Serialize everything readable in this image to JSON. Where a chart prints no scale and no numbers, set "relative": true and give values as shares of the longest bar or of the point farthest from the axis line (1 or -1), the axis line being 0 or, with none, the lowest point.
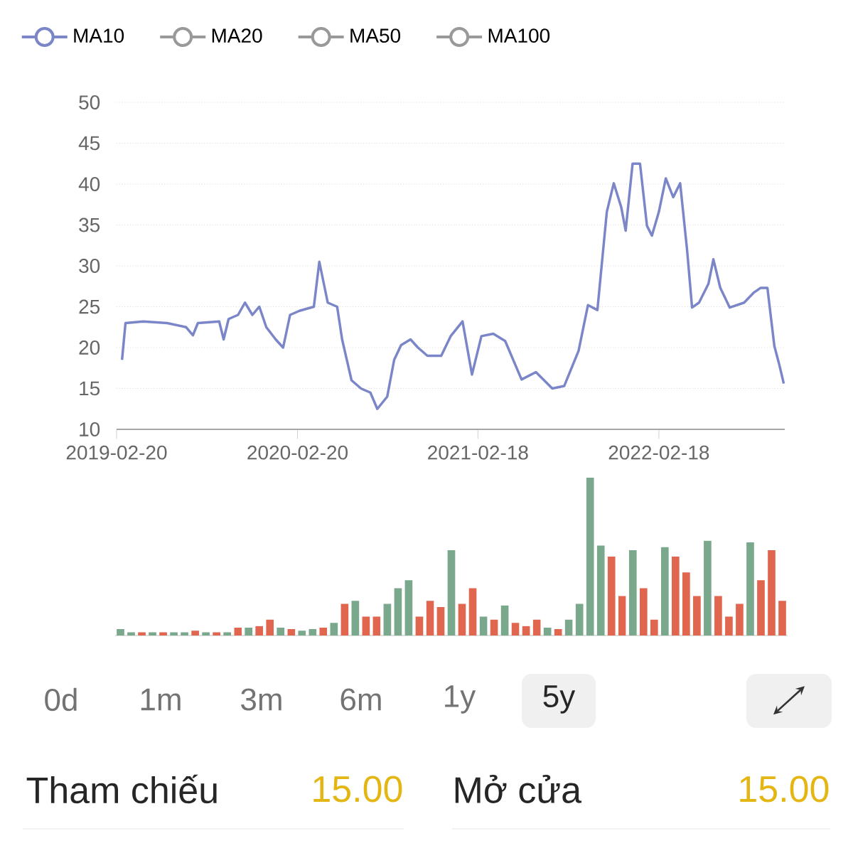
{
  "chart_data": [
    {
      "type": "line",
      "xlim": [
        "2019-02-20",
        "2022-10-30"
      ],
      "xticks": [
        "2019-02-20",
        "2020-02-20",
        "2021-02-18",
        "2022-02-18"
      ],
      "ylim": [
        10,
        50
      ],
      "yticks": [
        10,
        15,
        20,
        25,
        30,
        35,
        40,
        45,
        50
      ],
      "grid": "y",
      "legend": "top left",
      "series": [
        {
          "name": "MA10",
          "color": "#7b86c8",
          "x": [
            "2019-03-03",
            "2019-03-10",
            "2019-04-15",
            "2019-06-02",
            "2019-07-10",
            "2019-07-24",
            "2019-08-03",
            "2019-09-15",
            "2019-09-24",
            "2019-10-04",
            "2019-10-23",
            "2019-11-06",
            "2019-11-21",
            "2019-12-05",
            "2019-12-19",
            "2020-01-07",
            "2020-01-22",
            "2020-02-05",
            "2020-02-24",
            "2020-03-24",
            "2020-04-04",
            "2020-04-21",
            "2020-05-10",
            "2020-05-20",
            "2020-06-08",
            "2020-06-27",
            "2020-07-16",
            "2020-07-30",
            "2020-08-19",
            "2020-09-02",
            "2020-09-16",
            "2020-10-05",
            "2020-10-20",
            "2020-11-08",
            "2020-12-06",
            "2020-12-25",
            "2021-01-18",
            "2021-02-06",
            "2021-02-25",
            "2021-03-21",
            "2021-04-14",
            "2021-05-17",
            "2021-06-15",
            "2021-07-18",
            "2021-08-11",
            "2021-09-09",
            "2021-09-28",
            "2021-10-17",
            "2021-11-05",
            "2021-11-19",
            "2021-12-04",
            "2021-12-13",
            "2021-12-27",
            "2022-01-11",
            "2022-01-25",
            "2022-02-04",
            "2022-02-18",
            "2022-03-04",
            "2022-03-19",
            "2022-04-02",
            "2022-04-16",
            "2022-04-26",
            "2022-05-10",
            "2022-05-29",
            "2022-06-08",
            "2022-06-22",
            "2022-07-11",
            "2022-08-09",
            "2022-08-28",
            "2022-09-11",
            "2022-09-25",
            "2022-10-09",
            "2022-10-19",
            "2022-10-28"
          ],
          "values": [
            18.5,
            23,
            23.2,
            23,
            22.5,
            21.5,
            23,
            23.2,
            21,
            23.5,
            24,
            25.5,
            24,
            25,
            22.5,
            21,
            20,
            24,
            24.5,
            25,
            30.5,
            25.5,
            25,
            21,
            16,
            15,
            14.5,
            12.5,
            14,
            18.5,
            20.3,
            21,
            20,
            19,
            19,
            21.4,
            23.2,
            16.7,
            21.4,
            21.7,
            20.8,
            16.1,
            17,
            15,
            15.3,
            19.6,
            25.2,
            24.6,
            36.6,
            40.1,
            37.2,
            34.3,
            42.5,
            42.5,
            34.9,
            33.7,
            36.6,
            40.7,
            38.4,
            40.1,
            31.9,
            24.9,
            25.5,
            27.8,
            30.8,
            27.3,
            24.9,
            25.5,
            26.7,
            27.3,
            27.3,
            20.2,
            17.9,
            15.6
          ]
        },
        {
          "name": "MA20",
          "color": "#999999"
        },
        {
          "name": "MA50",
          "color": "#999999"
        },
        {
          "name": "MA100",
          "color": "#999999"
        }
      ]
    },
    {
      "type": "bar",
      "relative": true,
      "categories": [
        null,
        null,
        null,
        null,
        null,
        null,
        null,
        null,
        null,
        null,
        null,
        null,
        null,
        null,
        null,
        null,
        null,
        null,
        null,
        null,
        null,
        null,
        null,
        null,
        null,
        null,
        null,
        null,
        null,
        null,
        null,
        null,
        null,
        null,
        null,
        null,
        null,
        null,
        null,
        null,
        null,
        null,
        null,
        null,
        null,
        null,
        null,
        null,
        null,
        null,
        null,
        null,
        null,
        null,
        null,
        null,
        null,
        null,
        null,
        null,
        null,
        null,
        null
      ],
      "values": [
        0.04,
        0.02,
        0.02,
        0.02,
        0.02,
        0.02,
        0.02,
        0.03,
        0.02,
        0.02,
        0.02,
        0.05,
        0.05,
        0.06,
        0.1,
        0.05,
        0.04,
        0.03,
        0.04,
        0.05,
        0.08,
        0.2,
        0.22,
        0.12,
        0.12,
        0.2,
        0.3,
        0.35,
        0.12,
        0.22,
        0.18,
        0.54,
        0.2,
        0.3,
        0.12,
        0.1,
        0.19,
        0.08,
        0.06,
        0.1,
        0.05,
        0.04,
        0.1,
        0.2,
        1.0,
        0.57,
        0.5,
        0.25,
        0.54,
        0.3,
        0.1,
        0.56,
        0.5,
        0.4,
        0.25,
        0.6,
        0.25,
        0.12,
        0.2,
        0.59,
        0.35,
        0.54,
        0.22
      ],
      "colors": [
        "#7aa88c",
        "#7aa88c",
        "#e0664f",
        "#7aa88c",
        "#e0664f",
        "#7aa88c",
        "#7aa88c",
        "#e0664f",
        "#7aa88c",
        "#e0664f",
        "#7aa88c",
        "#e0664f",
        "#7aa88c",
        "#e0664f",
        "#e0664f",
        "#7aa88c",
        "#e0664f",
        "#7aa88c",
        "#7aa88c",
        "#e0664f",
        "#7aa88c",
        "#e0664f",
        "#7aa88c",
        "#e0664f",
        "#e0664f",
        "#7aa88c",
        "#7aa88c",
        "#7aa88c",
        "#e0664f",
        "#e0664f",
        "#e0664f",
        "#7aa88c",
        "#e0664f",
        "#e0664f",
        "#7aa88c",
        "#e0664f",
        "#7aa88c",
        "#e0664f",
        "#e0664f",
        "#e0664f",
        "#7aa88c",
        "#e0664f",
        "#7aa88c",
        "#7aa88c",
        "#7aa88c",
        "#7aa88c",
        "#e0664f",
        "#e0664f",
        "#7aa88c",
        "#e0664f",
        "#e0664f",
        "#7aa88c",
        "#e0664f",
        "#e0664f",
        "#e0664f",
        "#7aa88c",
        "#e0664f",
        "#e0664f",
        "#e0664f",
        "#7aa88c",
        "#e0664f",
        "#e0664f",
        "#e0664f"
      ]
    },
    {
      "type": "other",
      "annotations": [
        "0d",
        "1m",
        "3m",
        "6m",
        "1y",
        "5y",
        "Tham chiếu",
        "15.00",
        "Mở cửa",
        "15.00"
      ]
    }
  ]
}
